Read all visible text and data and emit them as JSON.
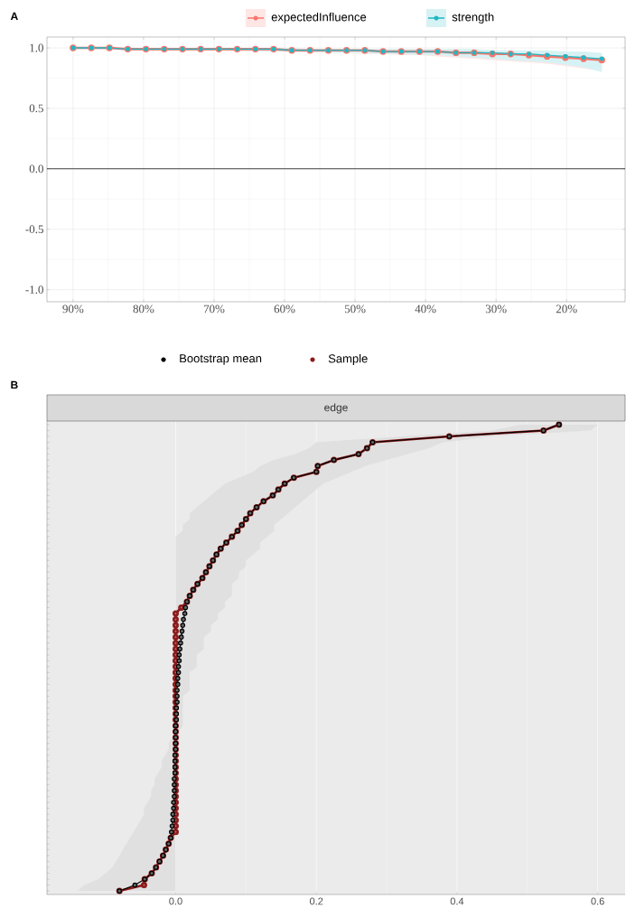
{
  "chart_data": [
    {
      "type": "line",
      "annotations": [
        "A"
      ],
      "legend": "top",
      "grid": true,
      "marker": "circle",
      "line_style": "solid",
      "x": [
        90,
        87.41,
        84.83,
        82.24,
        79.66,
        77.07,
        74.48,
        71.9,
        69.31,
        66.72,
        64.14,
        61.55,
        58.97,
        56.38,
        53.79,
        51.21,
        48.62,
        46.03,
        43.45,
        40.86,
        38.28,
        35.69,
        33.1,
        30.52,
        27.93,
        25.34,
        22.76,
        20.17,
        17.59,
        15.0
      ],
      "xlim": [
        93.7,
        11.7
      ],
      "xticks": [
        {
          "value": 90,
          "label": "90%"
        },
        {
          "value": 80,
          "label": "80%"
        },
        {
          "value": 70,
          "label": "70%"
        },
        {
          "value": 60,
          "label": "60%"
        },
        {
          "value": 50,
          "label": "50%"
        },
        {
          "value": 40,
          "label": "40%"
        },
        {
          "value": 30,
          "label": "30%"
        },
        {
          "value": 20,
          "label": "20%"
        }
      ],
      "ylim": [
        -1.1,
        1.09
      ],
      "yticks": [
        {
          "value": -1,
          "label": "-1.0"
        },
        {
          "value": -0.5,
          "label": "-0.5"
        },
        {
          "value": 0,
          "label": "0.0"
        },
        {
          "value": 0.5,
          "label": "0.5"
        },
        {
          "value": 1,
          "label": "1.0"
        }
      ],
      "ref_lines": [
        {
          "axis": "y",
          "value": 0,
          "color": "#000000"
        }
      ],
      "series": [
        {
          "name": "expectedInfluence",
          "color": "#f8766d",
          "values": [
            1.0,
            1.0,
            1.0,
            0.99,
            0.99,
            0.99,
            0.99,
            0.99,
            0.99,
            0.99,
            0.99,
            0.99,
            0.98,
            0.98,
            0.98,
            0.98,
            0.98,
            0.97,
            0.97,
            0.97,
            0.97,
            0.96,
            0.96,
            0.95,
            0.95,
            0.94,
            0.93,
            0.92,
            0.91,
            0.9
          ],
          "lower": [
            1.0,
            0.99,
            0.99,
            0.99,
            0.98,
            0.98,
            0.98,
            0.98,
            0.98,
            0.97,
            0.97,
            0.97,
            0.97,
            0.96,
            0.96,
            0.96,
            0.95,
            0.95,
            0.94,
            0.94,
            0.93,
            0.92,
            0.91,
            0.9,
            0.89,
            0.88,
            0.87,
            0.85,
            0.83,
            0.81
          ],
          "upper": [
            1.0,
            1.0,
            1.0,
            1.0,
            1.0,
            1.0,
            1.0,
            1.0,
            1.0,
            1.0,
            1.0,
            1.0,
            1.0,
            0.99,
            0.99,
            0.99,
            0.99,
            0.99,
            0.99,
            0.99,
            0.99,
            0.99,
            0.99,
            0.98,
            0.98,
            0.97,
            0.97,
            0.96,
            0.96,
            0.95
          ]
        },
        {
          "name": "strength",
          "color": "#1fb8c3",
          "values": [
            1.0,
            1.0,
            1.0,
            0.99,
            0.99,
            0.99,
            0.99,
            0.99,
            0.99,
            0.99,
            0.99,
            0.99,
            0.98,
            0.98,
            0.98,
            0.98,
            0.98,
            0.97,
            0.97,
            0.97,
            0.97,
            0.96,
            0.96,
            0.96,
            0.95,
            0.95,
            0.94,
            0.93,
            0.92,
            0.91
          ],
          "lower": [
            1.0,
            0.99,
            0.99,
            0.99,
            0.99,
            0.98,
            0.98,
            0.98,
            0.98,
            0.98,
            0.97,
            0.97,
            0.97,
            0.97,
            0.96,
            0.96,
            0.96,
            0.95,
            0.95,
            0.94,
            0.94,
            0.93,
            0.92,
            0.91,
            0.9,
            0.89,
            0.88,
            0.86,
            0.84,
            0.8
          ],
          "upper": [
            1.0,
            1.0,
            1.0,
            1.0,
            1.0,
            1.0,
            1.0,
            1.0,
            1.0,
            1.0,
            1.0,
            1.0,
            1.0,
            0.99,
            0.99,
            0.99,
            0.99,
            0.99,
            0.99,
            0.99,
            0.99,
            0.99,
            0.99,
            0.98,
            0.98,
            0.98,
            0.98,
            0.97,
            0.97,
            0.96
          ]
        }
      ]
    },
    {
      "type": "line",
      "orientation": "horizontal",
      "title": "edge",
      "annotations": [
        "B"
      ],
      "legend": "top",
      "grid": "x",
      "marker": "circle",
      "line_style": "solid",
      "categories": [
        null,
        null,
        null,
        null,
        null,
        null,
        null,
        null,
        null,
        null,
        null,
        null,
        null,
        null,
        null,
        null,
        null,
        null,
        null,
        null,
        null,
        null,
        null,
        null,
        null,
        null,
        null,
        null,
        null,
        null,
        null,
        null,
        null,
        null,
        null,
        null,
        null,
        null,
        null,
        null,
        null,
        null,
        null,
        null,
        null,
        null,
        null,
        null,
        null,
        null,
        null,
        null,
        null,
        null,
        null,
        null,
        null,
        null,
        null,
        null,
        null,
        null,
        null,
        null,
        null,
        null,
        null,
        null,
        null,
        null,
        null,
        null,
        null,
        null,
        null,
        null,
        null,
        null,
        null,
        null
      ],
      "xlim": [
        -0.183,
        0.639
      ],
      "xticks": [
        {
          "value": 0,
          "label": "0.0"
        },
        {
          "value": 0.2,
          "label": "0.2"
        },
        {
          "value": 0.4,
          "label": "0.4"
        },
        {
          "value": 0.6,
          "label": "0.6"
        }
      ],
      "series": [
        {
          "name": "Bootstrap mean",
          "color": "#000000",
          "values": [
            0.545,
            0.523,
            0.389,
            0.28,
            0.272,
            0.26,
            0.225,
            0.202,
            0.2,
            0.168,
            0.155,
            0.146,
            0.138,
            0.125,
            0.115,
            0.106,
            0.1,
            0.094,
            0.088,
            0.08,
            0.072,
            0.064,
            0.058,
            0.053,
            0.048,
            0.043,
            0.038,
            0.031,
            0.025,
            0.02,
            0.016,
            0.014,
            0.013,
            0.011,
            0.01,
            0.009,
            0.008,
            0.007,
            0.006,
            0.005,
            0.005,
            0.004,
            0.004,
            0.003,
            0.003,
            0.002,
            0.002,
            0.002,
            0.001,
            0.001,
            0.001,
            0.0,
            0.0,
            0.0,
            0.0,
            0.0,
            -0.001,
            -0.001,
            -0.001,
            -0.001,
            -0.002,
            -0.002,
            -0.002,
            -0.002,
            -0.003,
            -0.003,
            -0.004,
            -0.004,
            -0.005,
            -0.006,
            -0.007,
            -0.01,
            -0.014,
            -0.018,
            -0.023,
            -0.028,
            -0.034,
            -0.044,
            -0.058,
            -0.08
          ],
          "lower": [
            0.49,
            0.45,
            0.32,
            0.2,
            0.19,
            0.17,
            0.14,
            0.12,
            0.11,
            0.09,
            0.07,
            0.06,
            0.05,
            0.04,
            0.03,
            0.02,
            0.02,
            0.01,
            0.01,
            0.0,
            0,
            0,
            0,
            0,
            0,
            0,
            0,
            0,
            0,
            0,
            0,
            0,
            0,
            0,
            0,
            0,
            0,
            0,
            0,
            0,
            0,
            0,
            0,
            0,
            0,
            0,
            0,
            0,
            0,
            0,
            0,
            0,
            0,
            -0.005,
            -0.01,
            -0.01,
            -0.015,
            -0.02,
            -0.02,
            -0.025,
            -0.03,
            -0.03,
            -0.035,
            -0.035,
            -0.04,
            -0.045,
            -0.045,
            -0.05,
            -0.055,
            -0.06,
            -0.065,
            -0.07,
            -0.075,
            -0.08,
            -0.085,
            -0.09,
            -0.1,
            -0.11,
            -0.13,
            -0.14
          ],
          "upper": [
            0.6,
            0.59,
            0.45,
            0.38,
            0.36,
            0.33,
            0.3,
            0.27,
            0.25,
            0.23,
            0.21,
            0.2,
            0.19,
            0.18,
            0.17,
            0.16,
            0.15,
            0.14,
            0.14,
            0.13,
            0.12,
            0.12,
            0.11,
            0.1,
            0.1,
            0.09,
            0.09,
            0.08,
            0.08,
            0.08,
            0.07,
            0.07,
            0.06,
            0.06,
            0.05,
            0.05,
            0.04,
            0.04,
            0.04,
            0.03,
            0.03,
            0.03,
            0.02,
            0.02,
            0.02,
            0.02,
            0.01,
            0.01,
            0.01,
            0.01,
            0.01,
            0.01,
            0.005,
            0.005,
            0.005,
            0,
            0,
            0,
            0,
            0,
            0,
            0,
            0,
            0,
            0,
            0,
            0,
            0,
            0,
            0,
            0,
            0,
            0,
            0,
            0,
            0,
            0,
            0,
            0,
            0
          ]
        },
        {
          "name": "Sample",
          "color": "#8b1a1a",
          "values": [
            0.545,
            0.523,
            0.389,
            0.28,
            0.272,
            0.26,
            0.225,
            0.202,
            0.2,
            0.168,
            0.155,
            0.146,
            0.138,
            0.125,
            0.115,
            0.106,
            0.1,
            0.094,
            0.088,
            0.08,
            0.072,
            0.064,
            0.058,
            0.053,
            0.048,
            0.043,
            0.038,
            0.031,
            0.025,
            0.02,
            0.016,
            0.008,
            0,
            0,
            0,
            0,
            0,
            0,
            0,
            0,
            0,
            0,
            0,
            0,
            0,
            0,
            0,
            0,
            0,
            0,
            0,
            0,
            0,
            0,
            0,
            0,
            0,
            0,
            0,
            0,
            0,
            0,
            0,
            0,
            0,
            0,
            0,
            0,
            0,
            0,
            -0.007,
            -0.01,
            -0.014,
            -0.018,
            -0.023,
            -0.028,
            -0.034,
            -0.044,
            -0.045,
            -0.08
          ]
        }
      ]
    }
  ]
}
